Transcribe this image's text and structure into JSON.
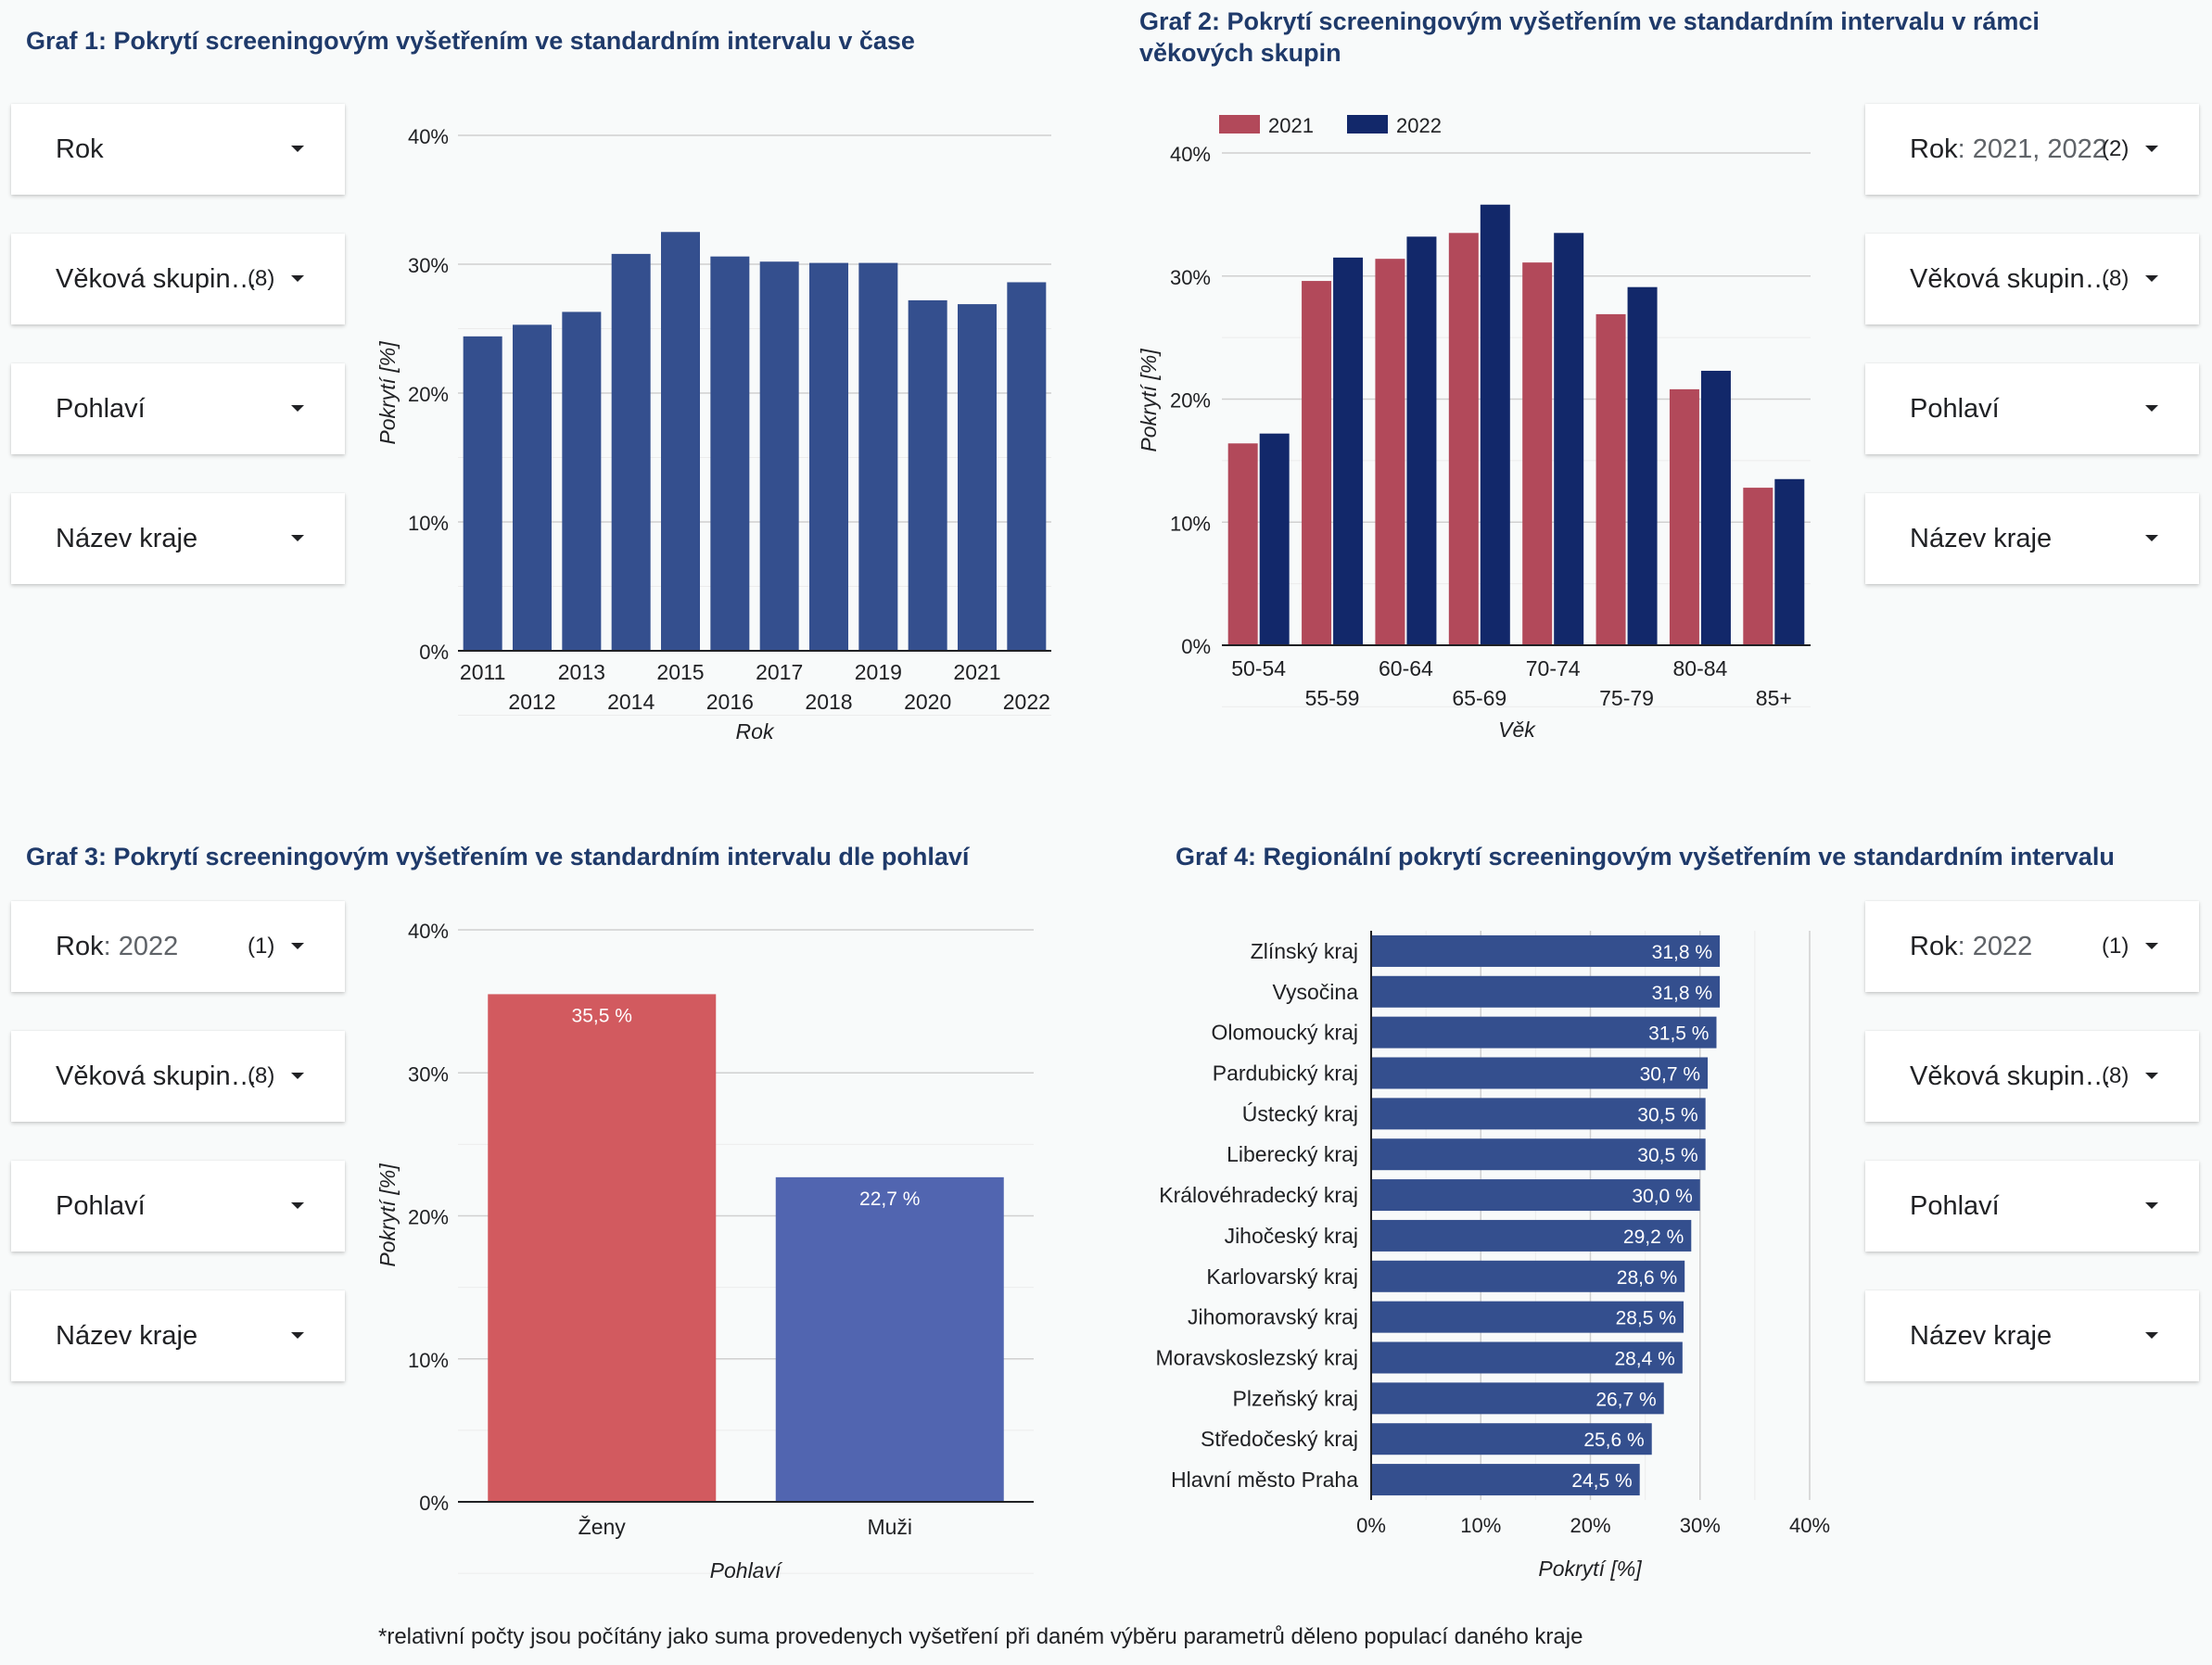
{
  "titles": {
    "g1": "Graf 1: Pokrytí screeningovým vyšetřením ve standardním intervalu v čase",
    "g2_line1": "Graf 2: Pokrytí screeningovým vyšetřením ve standardním intervalu v rámci",
    "g2_line2": "věkových skupin",
    "g3": "Graf 3: Pokrytí screeningovým vyšetřením ve standardním intervalu dle pohlaví",
    "g4": "Graf 4: Regionální pokrytí screeningovým vyšetřením ve standardním intervalu"
  },
  "filters": {
    "g1": [
      {
        "label": "Rok",
        "value": "",
        "count": ""
      },
      {
        "label": "Věková skupin…",
        "value": "",
        "count": "(8)"
      },
      {
        "label": "Pohlaví",
        "value": "",
        "count": ""
      },
      {
        "label": "Název kraje",
        "value": "",
        "count": ""
      }
    ],
    "g2": [
      {
        "label": "Rok",
        "value": ": 2021, 2022",
        "count": "(2)"
      },
      {
        "label": "Věková skupin…",
        "value": "",
        "count": "(8)"
      },
      {
        "label": "Pohlaví",
        "value": "",
        "count": ""
      },
      {
        "label": "Název kraje",
        "value": "",
        "count": ""
      }
    ],
    "g3": [
      {
        "label": "Rok",
        "value": ": 2022",
        "count": "(1)"
      },
      {
        "label": "Věková skupin…",
        "value": "",
        "count": "(8)"
      },
      {
        "label": "Pohlaví",
        "value": "",
        "count": ""
      },
      {
        "label": "Název kraje",
        "value": "",
        "count": ""
      }
    ],
    "g4": [
      {
        "label": "Rok",
        "value": ": 2022",
        "count": "(1)"
      },
      {
        "label": "Věková skupin…",
        "value": "",
        "count": "(8)"
      },
      {
        "label": "Pohlaví",
        "value": "",
        "count": ""
      },
      {
        "label": "Název kraje",
        "value": "",
        "count": ""
      }
    ]
  },
  "footnote": "*relativní počty jsou počítány jako suma provedenych vyšetření při daném výběru parametrů děleno populací daného kraje",
  "chart_data": [
    {
      "id": "g1",
      "type": "bar",
      "categories": [
        "2011",
        "2012",
        "2013",
        "2014",
        "2015",
        "2016",
        "2017",
        "2018",
        "2019",
        "2020",
        "2021",
        "2022"
      ],
      "values": [
        24.4,
        25.3,
        26.3,
        30.8,
        32.5,
        30.6,
        30.2,
        30.1,
        30.1,
        27.2,
        26.9,
        28.6
      ],
      "xlabel": "Rok",
      "ylabel": "Pokrytí [%]",
      "ylim": [
        0,
        40
      ],
      "yticks": [
        "0%",
        "10%",
        "20%",
        "30%",
        "40%"
      ],
      "colors": [
        "#344f8e"
      ]
    },
    {
      "id": "g2",
      "type": "bar",
      "categories": [
        "50-54",
        "55-59",
        "60-64",
        "65-69",
        "70-74",
        "75-79",
        "80-84",
        "85+"
      ],
      "series": [
        {
          "name": "2021",
          "values": [
            16.4,
            29.6,
            31.4,
            33.5,
            31.1,
            26.9,
            20.8,
            12.8
          ],
          "color": "#b2495a"
        },
        {
          "name": "2022",
          "values": [
            17.2,
            31.5,
            33.2,
            35.8,
            33.5,
            29.1,
            22.3,
            13.5
          ],
          "color": "#12286a"
        }
      ],
      "xlabel": "Věk",
      "ylabel": "Pokrytí [%]",
      "ylim": [
        0,
        40
      ],
      "yticks": [
        "0%",
        "10%",
        "20%",
        "30%",
        "40%"
      ],
      "legend": "top-left"
    },
    {
      "id": "g3",
      "type": "bar",
      "categories": [
        "Ženy",
        "Muži"
      ],
      "values": [
        35.5,
        22.7
      ],
      "labels": [
        "35,5 %",
        "22,7 %"
      ],
      "colors": [
        "#d25a5f",
        "#5165b0"
      ],
      "xlabel": "Pohlaví",
      "ylabel": "Pokrytí [%]",
      "ylim": [
        0,
        40
      ],
      "yticks": [
        "0%",
        "10%",
        "20%",
        "30%",
        "40%"
      ]
    },
    {
      "id": "g4",
      "type": "bar",
      "orientation": "horizontal",
      "categories": [
        "Zlínský kraj",
        "Vysočina",
        "Olomoucký kraj",
        "Pardubický kraj",
        "Ústecký kraj",
        "Liberecký kraj",
        "Královéhradecký kraj",
        "Jihočeský kraj",
        "Karlovarský kraj",
        "Jihomoravský kraj",
        "Moravskoslezský kraj",
        "Plzeňský kraj",
        "Středočeský kraj",
        "Hlavní město Praha"
      ],
      "values": [
        31.8,
        31.8,
        31.5,
        30.7,
        30.5,
        30.5,
        30.0,
        29.2,
        28.6,
        28.5,
        28.4,
        26.7,
        25.6,
        24.5
      ],
      "labels": [
        "31,8 %",
        "31,8 %",
        "31,5 %",
        "30,7 %",
        "30,5 %",
        "30,5 %",
        "30,0 %",
        "29,2 %",
        "28,6 %",
        "28,5 %",
        "28,4 %",
        "26,7 %",
        "25,6 %",
        "24,5 %"
      ],
      "xlabel": "Pokrytí [%]",
      "xlim": [
        0,
        40
      ],
      "xticks": [
        "0%",
        "10%",
        "20%",
        "30%",
        "40%"
      ],
      "colors": [
        "#344f8e"
      ]
    }
  ]
}
